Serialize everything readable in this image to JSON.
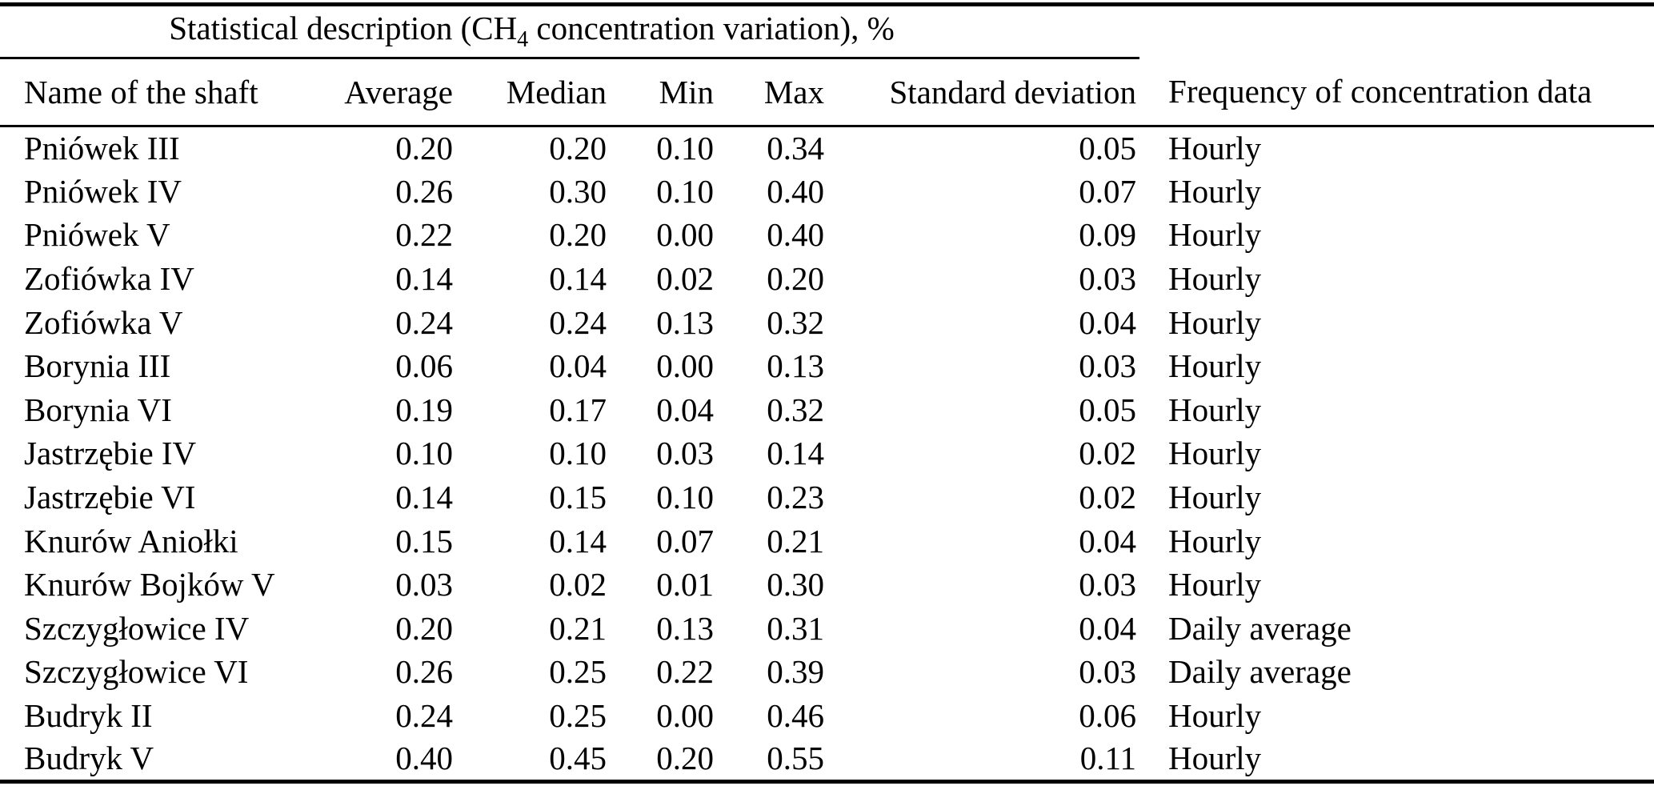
{
  "page": {
    "background_color": "#ffffff",
    "text_color": "#000000",
    "rule_color": "#000000"
  },
  "table": {
    "span_header": {
      "prefix": "Statistical description (CH",
      "subscript": "4",
      "suffix": " concentration variation), %"
    },
    "columns": [
      "Name of the shaft",
      "Average",
      "Median",
      "Min",
      "Max",
      "Standard deviation",
      "Frequency of concentration data"
    ],
    "rows": [
      {
        "name": "Pniówek III",
        "average": "0.20",
        "median": "0.20",
        "min": "0.10",
        "max": "0.34",
        "std": "0.05",
        "frequency": "Hourly"
      },
      {
        "name": "Pniówek IV",
        "average": "0.26",
        "median": "0.30",
        "min": "0.10",
        "max": "0.40",
        "std": "0.07",
        "frequency": "Hourly"
      },
      {
        "name": "Pniówek V",
        "average": "0.22",
        "median": "0.20",
        "min": "0.00",
        "max": "0.40",
        "std": "0.09",
        "frequency": "Hourly"
      },
      {
        "name": "Zofiówka IV",
        "average": "0.14",
        "median": "0.14",
        "min": "0.02",
        "max": "0.20",
        "std": "0.03",
        "frequency": "Hourly"
      },
      {
        "name": "Zofiówka V",
        "average": "0.24",
        "median": "0.24",
        "min": "0.13",
        "max": "0.32",
        "std": "0.04",
        "frequency": "Hourly"
      },
      {
        "name": "Borynia III",
        "average": "0.06",
        "median": "0.04",
        "min": "0.00",
        "max": "0.13",
        "std": "0.03",
        "frequency": "Hourly"
      },
      {
        "name": "Borynia VI",
        "average": "0.19",
        "median": "0.17",
        "min": "0.04",
        "max": "0.32",
        "std": "0.05",
        "frequency": "Hourly"
      },
      {
        "name": "Jastrzębie IV",
        "average": "0.10",
        "median": "0.10",
        "min": "0.03",
        "max": "0.14",
        "std": "0.02",
        "frequency": "Hourly"
      },
      {
        "name": "Jastrzębie VI",
        "average": "0.14",
        "median": "0.15",
        "min": "0.10",
        "max": "0.23",
        "std": "0.02",
        "frequency": "Hourly"
      },
      {
        "name": "Knurów Aniołki",
        "average": "0.15",
        "median": "0.14",
        "min": "0.07",
        "max": "0.21",
        "std": "0.04",
        "frequency": "Hourly"
      },
      {
        "name": "Knurów Bojków V",
        "average": "0.03",
        "median": "0.02",
        "min": "0.01",
        "max": "0.30",
        "std": "0.03",
        "frequency": "Hourly"
      },
      {
        "name": "Szczygłowice IV",
        "average": "0.20",
        "median": "0.21",
        "min": "0.13",
        "max": "0.31",
        "std": "0.04",
        "frequency": "Daily average"
      },
      {
        "name": "Szczygłowice VI",
        "average": "0.26",
        "median": "0.25",
        "min": "0.22",
        "max": "0.39",
        "std": "0.03",
        "frequency": "Daily average"
      },
      {
        "name": "Budryk II",
        "average": "0.24",
        "median": "0.25",
        "min": "0.00",
        "max": "0.46",
        "std": "0.06",
        "frequency": "Hourly"
      },
      {
        "name": "Budryk V",
        "average": "0.40",
        "median": "0.45",
        "min": "0.20",
        "max": "0.55",
        "std": "0.11",
        "frequency": "Hourly"
      }
    ]
  }
}
